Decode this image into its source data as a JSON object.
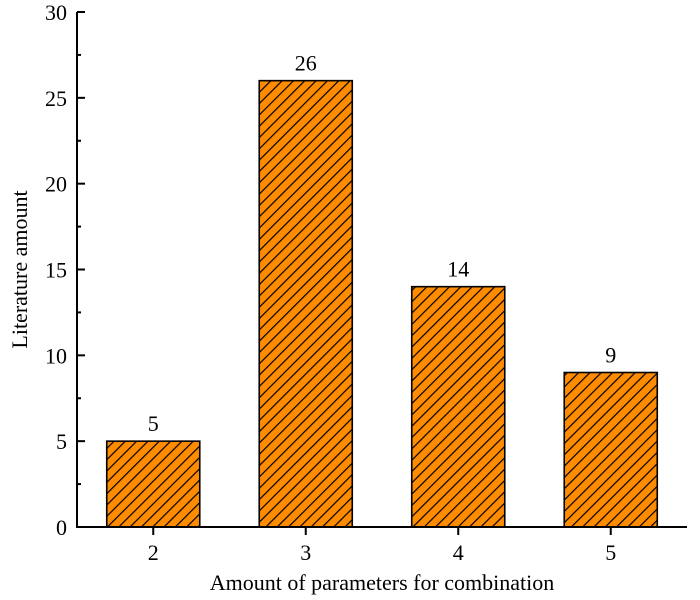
{
  "chart_data": {
    "type": "bar",
    "title": "",
    "xlabel": "Amount of parameters for combination",
    "ylabel": "Literature amount",
    "categories": [
      "2",
      "3",
      "4",
      "5"
    ],
    "values": [
      5,
      26,
      14,
      9
    ],
    "data_labels": [
      "5",
      "26",
      "14",
      "9"
    ],
    "ylim": [
      0,
      30
    ],
    "yticks": [
      "0",
      "5",
      "10",
      "15",
      "20",
      "25",
      "30"
    ],
    "bar_color": "#FF8C00",
    "hatch_color": "#000000",
    "grid": false,
    "legend": "none"
  }
}
